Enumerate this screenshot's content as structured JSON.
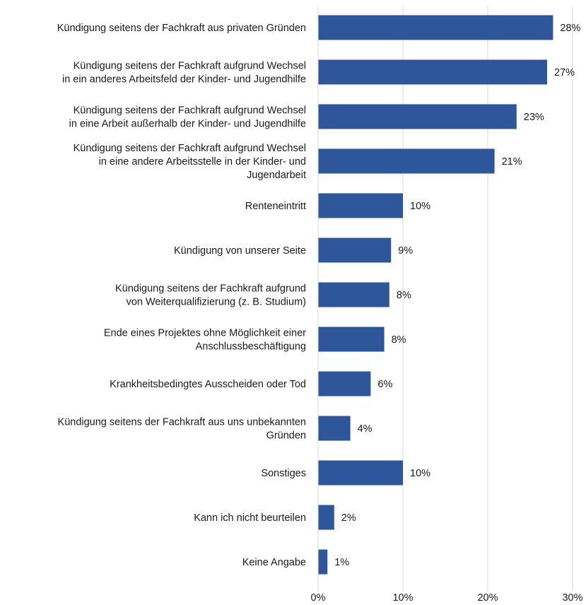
{
  "chart_data": {
    "type": "bar",
    "orientation": "horizontal",
    "categories": [
      [
        "Kündigung seitens der Fachkraft aus privaten Gründen"
      ],
      [
        "Kündigung seitens der Fachkraft aufgrund Wechsel",
        "in ein anderes Arbeitsfeld der Kinder- und Jugendhilfe"
      ],
      [
        "Kündigung seitens der Fachkraft aufgrund Wechsel",
        "in eine Arbeit außerhalb der Kinder- und Jugendhilfe"
      ],
      [
        "Kündigung seitens der Fachkraft aufgrund Wechsel",
        "in eine andere Arbeitsstelle in der Kinder- und",
        "Jugendarbeit"
      ],
      [
        "Renteneintritt"
      ],
      [
        "Kündigung von unserer Seite"
      ],
      [
        "Kündigung seitens der Fachkraft aufgrund",
        "von Weiterqualifizierung (z. B. Studium)"
      ],
      [
        "Ende eines Projektes ohne Möglichkeit einer",
        "Anschlussbeschäftigung"
      ],
      [
        "Krankheitsbedingtes Ausscheiden oder Tod"
      ],
      [
        "Kündigung seitens der Fachkraft aus uns unbekannten",
        "Gründen"
      ],
      [
        "Sonstiges"
      ],
      [
        "Kann ich nicht beurteilen"
      ],
      [
        "Keine Angabe"
      ]
    ],
    "values": [
      27.7,
      27.0,
      23.4,
      20.8,
      10.0,
      8.6,
      8.4,
      7.8,
      6.2,
      3.8,
      10.0,
      1.9,
      1.1
    ],
    "value_labels": [
      "28%",
      "27%",
      "23%",
      "21%",
      "10%",
      "9%",
      "8%",
      "8%",
      "6%",
      "4%",
      "10%",
      "2%",
      "1%"
    ],
    "xlim": [
      0,
      30
    ],
    "x_ticks": [
      0,
      10,
      20,
      30
    ],
    "x_tick_labels": [
      "0%",
      "10%",
      "20%",
      "30%"
    ],
    "title": "",
    "xlabel": "",
    "ylabel": "",
    "grid": true,
    "legend": "none",
    "bar_color": "#2e569a"
  }
}
